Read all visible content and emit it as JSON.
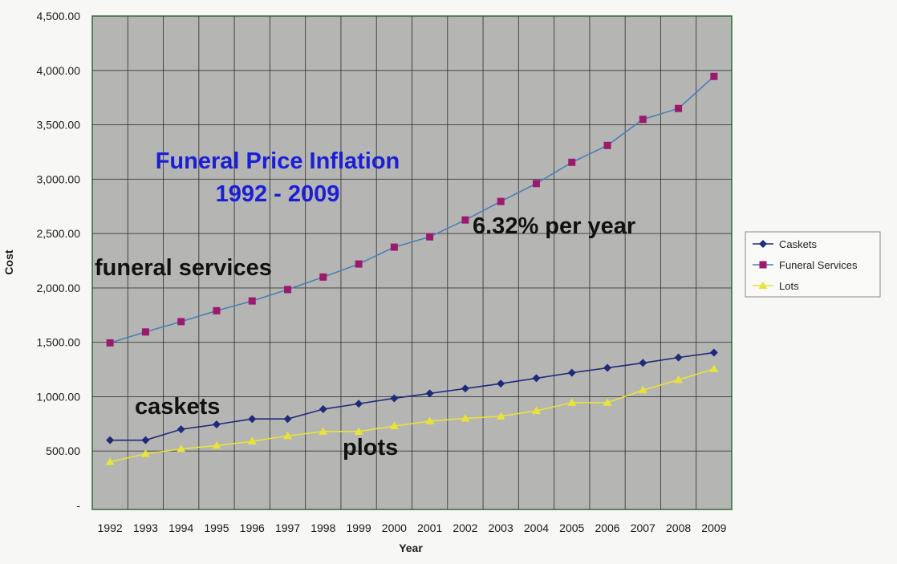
{
  "chart_data": {
    "type": "line",
    "title": "Funeral Price Inflation",
    "subtitle": "1992 - 2009",
    "xlabel": "Year",
    "ylabel": "Cost",
    "ylim": [
      0,
      4500
    ],
    "yticks": [
      "-",
      "500.00",
      "1,000.00",
      "1,500.00",
      "2,000.00",
      "2,500.00",
      "3,000.00",
      "3,500.00",
      "4,000.00",
      "4,500.00"
    ],
    "categories": [
      "1992",
      "1993",
      "1994",
      "1995",
      "1996",
      "1997",
      "1998",
      "1999",
      "2000",
      "2001",
      "2002",
      "2003",
      "2004",
      "2005",
      "2006",
      "2007",
      "2008",
      "2009"
    ],
    "series": [
      {
        "name": "Caskets",
        "color": "#1f2a7a",
        "marker": "diamond",
        "values": [
          600,
          600,
          700,
          745,
          795,
          795,
          885,
          935,
          985,
          1030,
          1075,
          1120,
          1170,
          1220,
          1265,
          1310,
          1360,
          1405
        ]
      },
      {
        "name": "Funeral Services",
        "color": "#9c1a6b",
        "line_color": "#4a7fb5",
        "marker": "square",
        "values": [
          1495,
          1595,
          1690,
          1790,
          1880,
          1985,
          2100,
          2220,
          2375,
          2470,
          2625,
          2795,
          2960,
          3155,
          3310,
          3550,
          3650,
          3945
        ]
      },
      {
        "name": "Lots",
        "color": "#e8e33a",
        "marker": "triangle",
        "values": [
          400,
          475,
          520,
          550,
          590,
          640,
          680,
          680,
          730,
          775,
          800,
          820,
          870,
          945,
          945,
          1060,
          1155,
          1255
        ]
      }
    ],
    "annotations": {
      "funeral_services": "funeral services",
      "caskets": "caskets",
      "plots": "plots",
      "rate": "6.32% per year"
    },
    "legend": [
      "Caskets",
      "Funeral Services",
      "Lots"
    ],
    "legend_position": "right",
    "grid": true
  }
}
